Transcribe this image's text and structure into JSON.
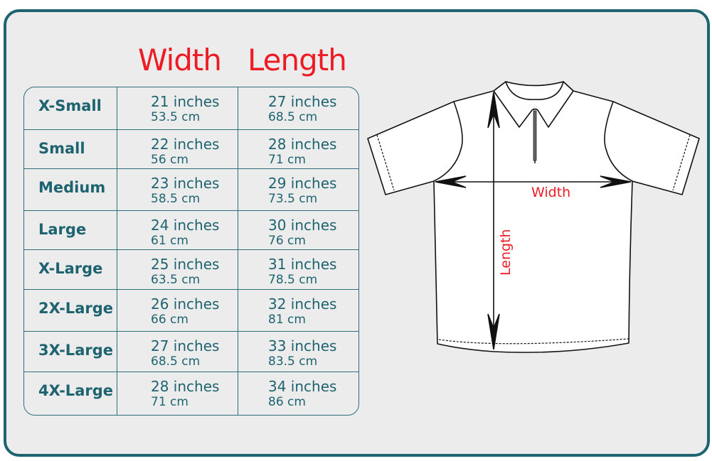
{
  "headers": {
    "width": "Width",
    "length": "Length"
  },
  "rows": [
    {
      "size": "X-Small",
      "width_in": "21 inches",
      "width_cm": "53.5 cm",
      "length_in": "27 inches",
      "length_cm": "68.5 cm"
    },
    {
      "size": "Small",
      "width_in": "22 inches",
      "width_cm": "56 cm",
      "length_in": "28 inches",
      "length_cm": "71 cm"
    },
    {
      "size": "Medium",
      "width_in": "23 inches",
      "width_cm": "58.5 cm",
      "length_in": "29 inches",
      "length_cm": "73.5 cm"
    },
    {
      "size": "Large",
      "width_in": "24 inches",
      "width_cm": "61 cm",
      "length_in": "30 inches",
      "length_cm": "76 cm"
    },
    {
      "size": "X-Large",
      "width_in": "25 inches",
      "width_cm": "63.5 cm",
      "length_in": "31 inches",
      "length_cm": "78.5 cm"
    },
    {
      "size": "2X-Large",
      "width_in": "26 inches",
      "width_cm": "66 cm",
      "length_in": "32 inches",
      "length_cm": "81 cm"
    },
    {
      "size": "3X-Large",
      "width_in": "27 inches",
      "width_cm": "68.5 cm",
      "length_in": "33 inches",
      "length_cm": "83.5 cm"
    },
    {
      "size": "4X-Large",
      "width_in": "28 inches",
      "width_cm": "71 cm",
      "length_in": "34 inches",
      "length_cm": "86 cm"
    }
  ],
  "diagram": {
    "width_label": "Width",
    "length_label": "Length",
    "icon": "polo-shirt-icon"
  },
  "colors": {
    "teal": "#1e6470",
    "red": "#ed1c24",
    "background": "#ececec"
  }
}
